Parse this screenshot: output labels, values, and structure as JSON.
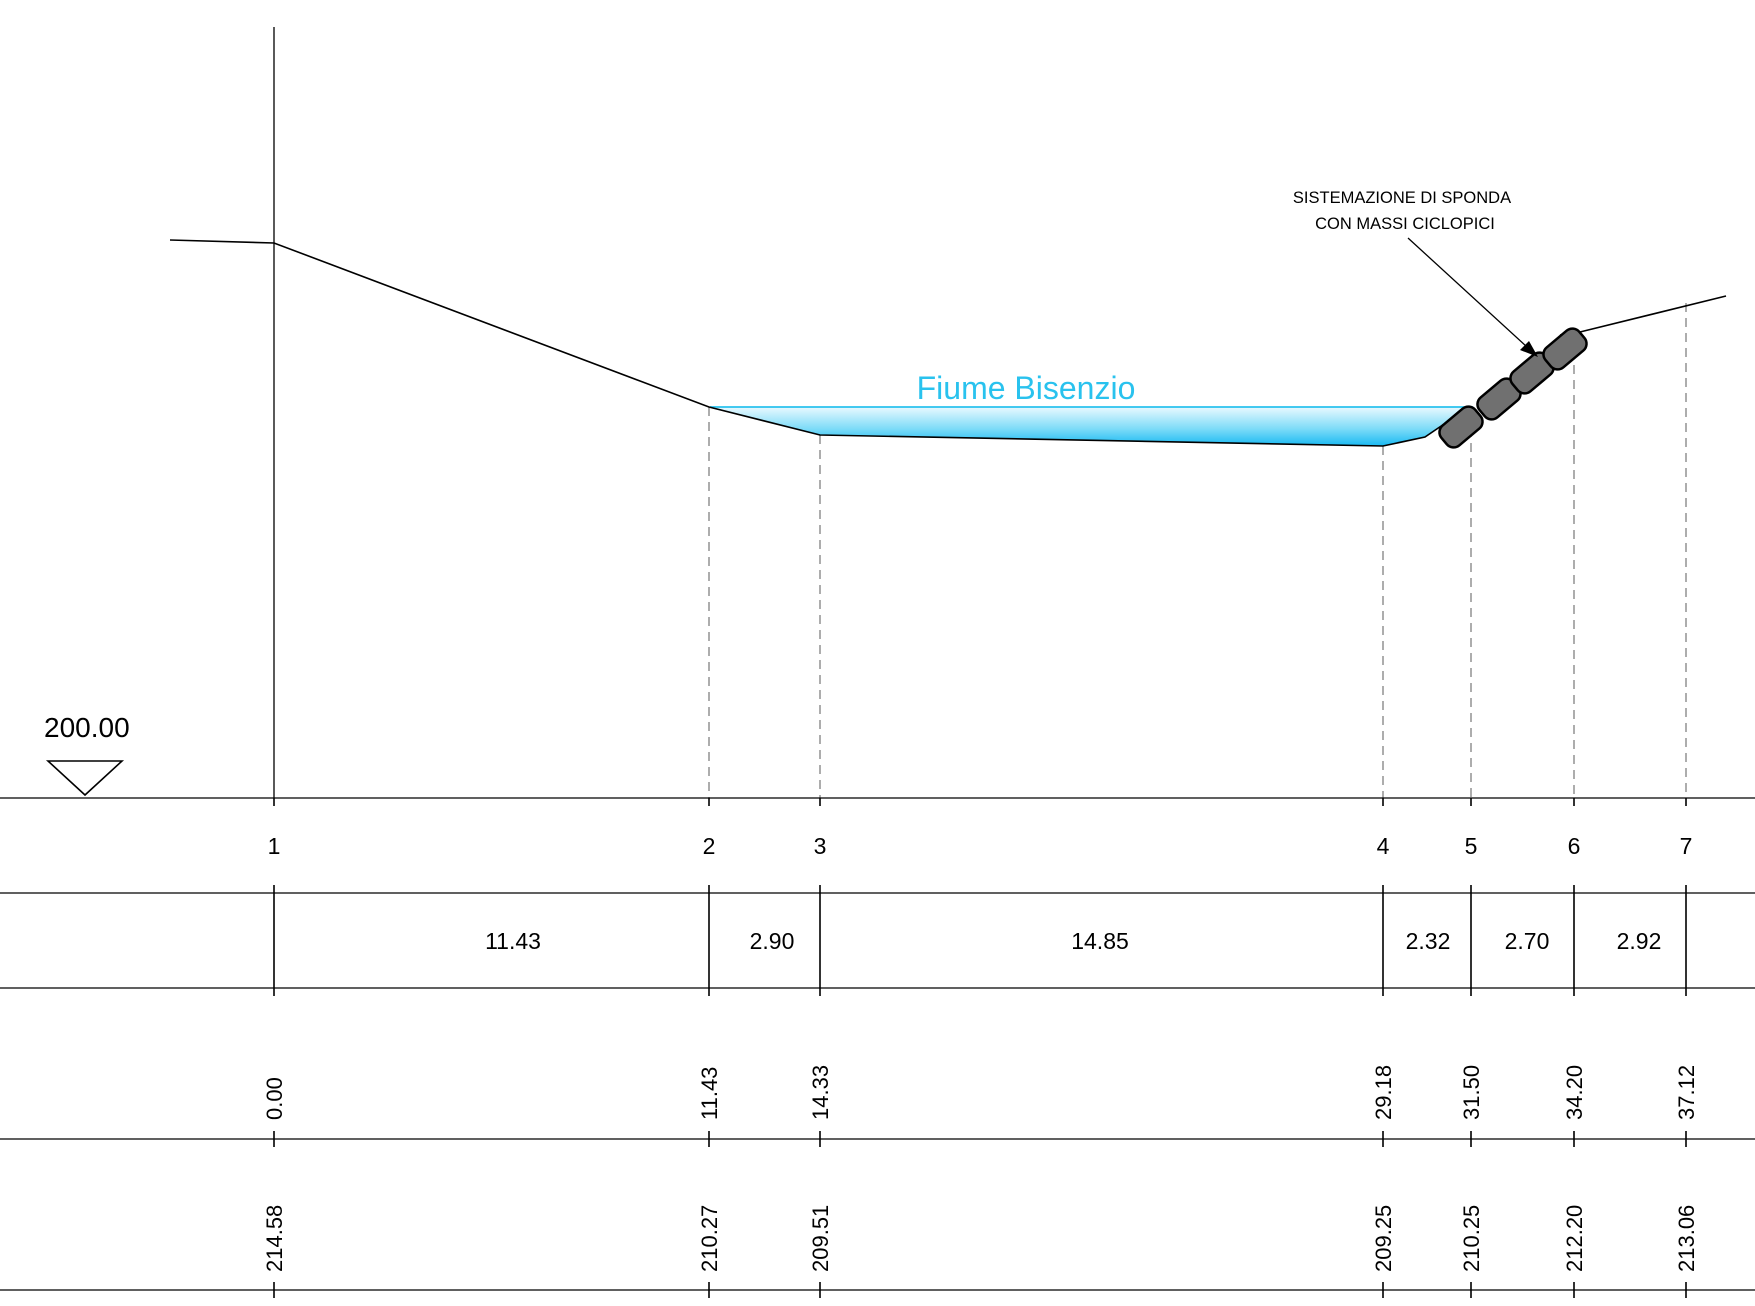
{
  "datum": {
    "label": "200.00",
    "value": 200.0
  },
  "river": {
    "label": "Fiume Bisenzio",
    "color": "#29c2ee"
  },
  "annotation": {
    "line1": "SISTEMAZIONE DI SPONDA",
    "line2": "CON MASSI CICLOPICI"
  },
  "points": [
    {
      "id": "1",
      "progressive": "0.00",
      "elevation": "214.58"
    },
    {
      "id": "2",
      "progressive": "11.43",
      "elevation": "210.27"
    },
    {
      "id": "3",
      "progressive": "14.33",
      "elevation": "209.51"
    },
    {
      "id": "4",
      "progressive": "29.18",
      "elevation": "209.25"
    },
    {
      "id": "5",
      "progressive": "31.50",
      "elevation": "210.25"
    },
    {
      "id": "6",
      "progressive": "34.20",
      "elevation": "212.20"
    },
    {
      "id": "7",
      "progressive": "37.12",
      "elevation": "213.06"
    }
  ],
  "partials": [
    "11.43",
    "2.90",
    "14.85",
    "2.32",
    "2.70",
    "2.92"
  ]
}
